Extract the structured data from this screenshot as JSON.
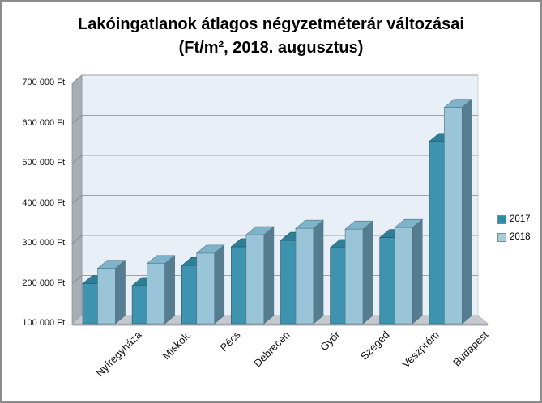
{
  "title": {
    "line1": "Lakóingatlanok átlagos négyzetméterár változásai",
    "line2": "(Ft/m², 2018. augusztus)"
  },
  "chart_data": {
    "type": "bar",
    "style": "3d-clustered-column",
    "title": "Lakóingatlanok átlagos négyzetméterár változásai (Ft/m², 2018. augusztus)",
    "categories": [
      "Nyíregyháza",
      "Miskolc",
      "Pécs",
      "Debrecen",
      "Győr",
      "Szeged",
      "Veszprém",
      "Budapest"
    ],
    "series": [
      {
        "name": "2017",
        "values": [
          200000,
          195000,
          245000,
          292000,
          308000,
          290000,
          315000,
          555000
        ],
        "color_front": "#3E93AE",
        "color_top": "#2E7E97",
        "color_side": "#26718A",
        "color_outline": "#1D586C",
        "color_legend": "#2E8CA8"
      },
      {
        "name": "2018",
        "values": [
          238000,
          250000,
          276000,
          322000,
          338000,
          336000,
          340000,
          640000
        ],
        "color_front": "#9AC5D8",
        "color_top": "#7FB3C9",
        "color_side": "#567C90",
        "color_outline": "#4E7488",
        "color_legend": "#A7CDDD"
      }
    ],
    "ylim": [
      100000,
      700000
    ],
    "ytick_step": 100000,
    "ytick_labels": [
      "100 000 Ft",
      "200 000 Ft",
      "300 000 Ft",
      "400 000 Ft",
      "500 000 Ft",
      "600 000 Ft",
      "700 000 Ft"
    ],
    "yunit": "Ft",
    "grid": true,
    "legend_position": "right"
  },
  "theme": {
    "frame_border": "#8C8C8C",
    "wall_back": "#E9EFF6",
    "wall_back_edge": "#B9BEC3",
    "wall_side": "#A9AEB6",
    "wall_side_edge": "#868B93",
    "wall_tick": "#8A8F96",
    "floor": "#C5C8CD",
    "floor_edge": "#A7ABB0",
    "gridline": "#9CA1A6",
    "text": "#111111"
  }
}
